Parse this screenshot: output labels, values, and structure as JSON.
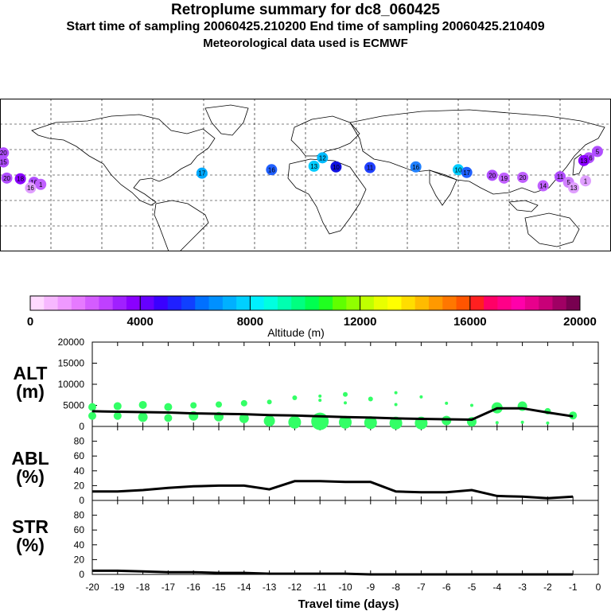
{
  "header": {
    "title": "Retroplume summary for dc8_060425",
    "sampling": "Start time of sampling 20060425.210200     End time of sampling 20060425.210409",
    "met": "Meteorological data used is ECMWF"
  },
  "map": {
    "point_labels": [
      {
        "label": "20",
        "lon": -178,
        "lat": 28,
        "color": "#b04dff"
      },
      {
        "label": "15",
        "lon": -178,
        "lat": 15,
        "color": "#b04dff"
      },
      {
        "label": "20",
        "lon": -176,
        "lat": -8,
        "color": "#b04dff"
      },
      {
        "label": "18",
        "lon": -168,
        "lat": -9,
        "color": "#8a00ff"
      },
      {
        "label": "16",
        "lon": -160,
        "lat": -14,
        "color": "#b04dff"
      },
      {
        "label": "1",
        "lon": -156,
        "lat": -17,
        "color": "#c060ff"
      },
      {
        "label": "16",
        "lon": -162,
        "lat": -22,
        "color": "#e0a0ff"
      },
      {
        "label": "17",
        "lon": -61,
        "lat": -1,
        "color": "#00aaff"
      },
      {
        "label": "16",
        "lon": -20,
        "lat": 4,
        "color": "#2060ff"
      },
      {
        "label": "13",
        "lon": 5,
        "lat": 9,
        "color": "#00ccff"
      },
      {
        "label": "12",
        "lon": 10,
        "lat": 21,
        "color": "#00bbff"
      },
      {
        "label": "10",
        "lon": 18,
        "lat": 8,
        "color": "#1010e0"
      },
      {
        "label": "11",
        "lon": 38,
        "lat": 7,
        "color": "#2040ff"
      },
      {
        "label": "16",
        "lon": 65,
        "lat": 8,
        "color": "#2080ff"
      },
      {
        "label": "10",
        "lon": 90,
        "lat": 4,
        "color": "#00ccff"
      },
      {
        "label": "17",
        "lon": 95,
        "lat": 0,
        "color": "#2060ff"
      },
      {
        "label": "20",
        "lon": 110,
        "lat": -4,
        "color": "#b04dff"
      },
      {
        "label": "19",
        "lon": 117,
        "lat": -8,
        "color": "#c060ff"
      },
      {
        "label": "20",
        "lon": 128,
        "lat": -7,
        "color": "#c060ff"
      },
      {
        "label": "11",
        "lon": 150,
        "lat": -6,
        "color": "#b04dff"
      },
      {
        "label": "5",
        "lon": 155,
        "lat": -14,
        "color": "#d080ff"
      },
      {
        "label": "1",
        "lon": 165,
        "lat": -12,
        "color": "#e0a0ff"
      },
      {
        "label": "13",
        "lon": 158,
        "lat": -22,
        "color": "#e0a0ff"
      },
      {
        "label": "14",
        "lon": 140,
        "lat": -19,
        "color": "#c060ff"
      },
      {
        "label": "5",
        "lon": 172,
        "lat": 30,
        "color": "#b04dff"
      },
      {
        "label": "16",
        "lon": 167,
        "lat": 21,
        "color": "#b04dff"
      },
      {
        "label": "13",
        "lon": 164,
        "lat": 17,
        "color": "#8a00ff"
      }
    ]
  },
  "colorbar": {
    "ticks": [
      "0",
      "4000",
      "8000",
      "12000",
      "16000",
      "20000"
    ],
    "label": "Altitude  (m)",
    "colors": [
      "#ffd9ff",
      "#f7b8ff",
      "#ef99ff",
      "#e67aff",
      "#d45cff",
      "#bf40ff",
      "#a020ff",
      "#8a00ff",
      "#6600ff",
      "#3a00ff",
      "#2020ff",
      "#1040ff",
      "#0070ff",
      "#0090ff",
      "#00b0ff",
      "#00d0ff",
      "#00f0ff",
      "#00ffe0",
      "#00ffb0",
      "#00ff80",
      "#00ff50",
      "#20ff20",
      "#60ff00",
      "#90ff00",
      "#c0ff00",
      "#e8ff00",
      "#ffff00",
      "#ffdd00",
      "#ffbb00",
      "#ff9900",
      "#ff7700",
      "#ff5500",
      "#ff2020",
      "#ff0066",
      "#ff0088",
      "#ff00aa",
      "#e8008c",
      "#c80078",
      "#a00064",
      "#780050"
    ]
  },
  "panels": {
    "alt": {
      "label_line1": "ALT",
      "label_line2": "(m)"
    },
    "abl": {
      "label_line1": "ABL",
      "label_line2": "(%)"
    },
    "str": {
      "label_line1": "STR",
      "label_line2": "(%)"
    },
    "xlabel": "Travel time (days)"
  },
  "chart_data": {
    "type": "line",
    "title": "Retroplume summary for dc8_060425",
    "xlabel": "Travel time (days)",
    "x_ticks": [
      -20,
      -19,
      -18,
      -17,
      -16,
      -15,
      -14,
      -13,
      -12,
      -11,
      -10,
      -9,
      -8,
      -7,
      -6,
      -5,
      -4,
      -3,
      -2,
      -1,
      0
    ],
    "xlim": [
      -20,
      0
    ],
    "alt": {
      "ylabel": "ALT (m)",
      "ylim": [
        0,
        20000
      ],
      "y_ticks": [
        0,
        5000,
        10000,
        15000,
        20000
      ],
      "line": {
        "x": [
          -20,
          -19,
          -18,
          -17,
          -16,
          -15,
          -14,
          -13,
          -12,
          -11,
          -10,
          -9,
          -8,
          -7,
          -6,
          -5,
          -4,
          -3,
          -2,
          -1
        ],
        "y": [
          3600,
          3500,
          3400,
          3300,
          3100,
          3000,
          2900,
          2700,
          2600,
          2400,
          2200,
          2100,
          1900,
          1800,
          1700,
          1600,
          4300,
          4300,
          3300,
          2400
        ]
      },
      "scatter": [
        {
          "x": -20,
          "y": 4600,
          "s": 5
        },
        {
          "x": -20,
          "y": 2500,
          "s": 5
        },
        {
          "x": -19,
          "y": 4800,
          "s": 5
        },
        {
          "x": -19,
          "y": 2500,
          "s": 5
        },
        {
          "x": -18,
          "y": 5100,
          "s": 5
        },
        {
          "x": -18,
          "y": 2200,
          "s": 6
        },
        {
          "x": -17,
          "y": 4600,
          "s": 5
        },
        {
          "x": -17,
          "y": 2000,
          "s": 5
        },
        {
          "x": -16,
          "y": 5000,
          "s": 4
        },
        {
          "x": -16,
          "y": 2500,
          "s": 6
        },
        {
          "x": -15,
          "y": 5200,
          "s": 4
        },
        {
          "x": -15,
          "y": 2300,
          "s": 6
        },
        {
          "x": -14,
          "y": 5500,
          "s": 4
        },
        {
          "x": -14,
          "y": 1900,
          "s": 6
        },
        {
          "x": -13,
          "y": 5800,
          "s": 3
        },
        {
          "x": -13,
          "y": 1300,
          "s": 7
        },
        {
          "x": -12,
          "y": 6800,
          "s": 3
        },
        {
          "x": -12,
          "y": 1000,
          "s": 8
        },
        {
          "x": -11,
          "y": 7200,
          "s": 2
        },
        {
          "x": -11,
          "y": 6200,
          "s": 2
        },
        {
          "x": -11,
          "y": 1200,
          "s": 11
        },
        {
          "x": -10,
          "y": 7600,
          "s": 3
        },
        {
          "x": -10,
          "y": 5600,
          "s": 2
        },
        {
          "x": -10,
          "y": 1000,
          "s": 8
        },
        {
          "x": -9,
          "y": 6500,
          "s": 3
        },
        {
          "x": -9,
          "y": 900,
          "s": 8
        },
        {
          "x": -8,
          "y": 8000,
          "s": 2
        },
        {
          "x": -8,
          "y": 5200,
          "s": 2
        },
        {
          "x": -8,
          "y": 800,
          "s": 8
        },
        {
          "x": -7,
          "y": 7000,
          "s": 2
        },
        {
          "x": -7,
          "y": 800,
          "s": 8
        },
        {
          "x": -6,
          "y": 5500,
          "s": 2
        },
        {
          "x": -6,
          "y": 1400,
          "s": 6
        },
        {
          "x": -5,
          "y": 5000,
          "s": 2
        },
        {
          "x": -5,
          "y": 1100,
          "s": 6
        },
        {
          "x": -4,
          "y": 4400,
          "s": 7
        },
        {
          "x": -4,
          "y": 900,
          "s": 2
        },
        {
          "x": -3,
          "y": 4800,
          "s": 6
        },
        {
          "x": -3,
          "y": 1000,
          "s": 2
        },
        {
          "x": -2,
          "y": 3600,
          "s": 4
        },
        {
          "x": -2,
          "y": 800,
          "s": 2
        },
        {
          "x": -1,
          "y": 2600,
          "s": 5
        }
      ]
    },
    "abl": {
      "ylabel": "ABL (%)",
      "ylim": [
        0,
        100
      ],
      "y_ticks": [
        0,
        20,
        40,
        60,
        80
      ],
      "x": [
        -20,
        -19,
        -18,
        -17,
        -16,
        -15,
        -14,
        -13,
        -12,
        -11,
        -10,
        -9,
        -8,
        -7,
        -6,
        -5,
        -4,
        -3,
        -2,
        -1
      ],
      "y": [
        12,
        12,
        14,
        17,
        19,
        20,
        20,
        15,
        26,
        26,
        25,
        25,
        12,
        11,
        11,
        14,
        6,
        5,
        3,
        5
      ]
    },
    "str": {
      "ylabel": "STR (%)",
      "ylim": [
        0,
        100
      ],
      "y_ticks": [
        0,
        20,
        40,
        60,
        80
      ],
      "x": [
        -20,
        -19,
        -18,
        -17,
        -16,
        -15,
        -14,
        -13,
        -12,
        -11,
        -10,
        -9,
        -8,
        -7,
        -6,
        -5,
        -4,
        -3,
        -2,
        -1
      ],
      "y": [
        5,
        5,
        4,
        3,
        3,
        2,
        2,
        1,
        1,
        1,
        1,
        0,
        0,
        0,
        0,
        0,
        0,
        0,
        0,
        0
      ]
    }
  }
}
